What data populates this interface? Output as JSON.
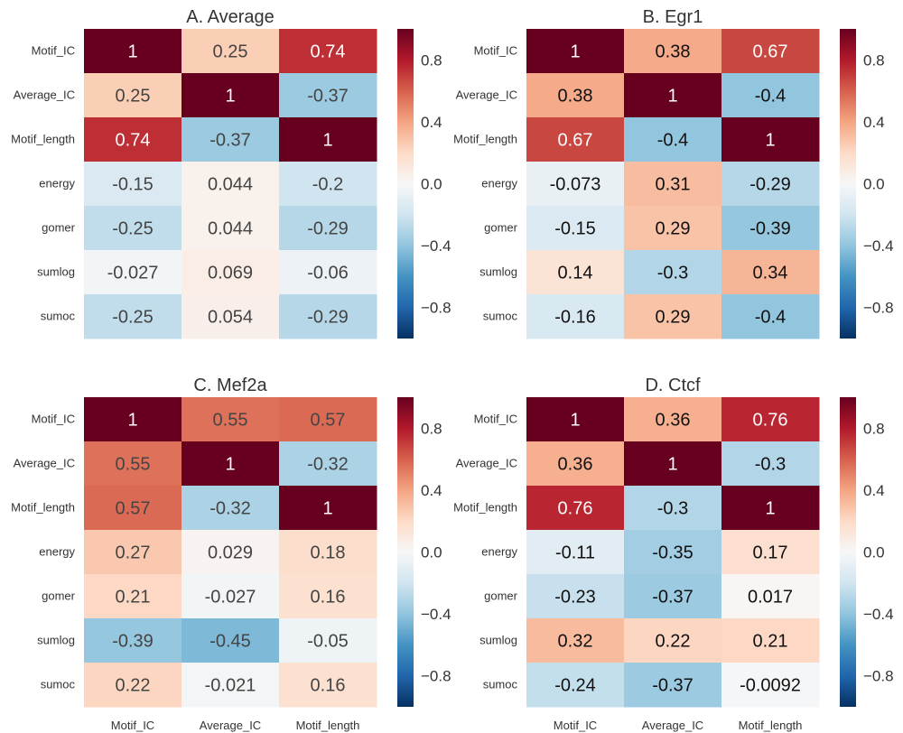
{
  "chart_data": [
    {
      "type": "heatmap",
      "title": "A.  Average",
      "rows": [
        "Motif_IC",
        "Average_IC",
        "Motif_length",
        "energy",
        "gomer",
        "sumlog",
        "sumoc"
      ],
      "cols": [
        "Motif_IC",
        "Average_IC",
        "Motif_length"
      ],
      "show_col_labels": false,
      "values": [
        [
          1,
          0.25,
          0.74
        ],
        [
          0.25,
          1,
          -0.37
        ],
        [
          0.74,
          -0.37,
          1
        ],
        [
          -0.15,
          0.044,
          -0.2
        ],
        [
          -0.25,
          0.044,
          -0.29
        ],
        [
          -0.027,
          0.069,
          -0.06
        ],
        [
          -0.25,
          0.054,
          -0.29
        ]
      ],
      "labels": [
        [
          "1",
          "0.25",
          "0.74"
        ],
        [
          "0.25",
          "1",
          "-0.37"
        ],
        [
          "0.74",
          "-0.37",
          "1"
        ],
        [
          "-0.15",
          "0.044",
          "-0.2"
        ],
        [
          "-0.25",
          "0.044",
          "-0.29"
        ],
        [
          "-0.027",
          "0.069",
          "-0.06"
        ],
        [
          "-0.25",
          "0.054",
          "-0.29"
        ]
      ],
      "colorbar": {
        "range": [
          -1,
          1
        ],
        "ticks": [
          "0.8",
          "0.4",
          "0.0",
          "−0.4",
          "−0.8"
        ],
        "tick_values": [
          0.8,
          0.4,
          0,
          -0.4,
          -0.8
        ]
      }
    },
    {
      "type": "heatmap",
      "title": "B.  Egr1",
      "rows": [
        "Motif_IC",
        "Average_IC",
        "Motif_length",
        "energy",
        "gomer",
        "sumlog",
        "sumoc"
      ],
      "cols": [
        "Motif_IC",
        "Average_IC",
        "Motif_length"
      ],
      "show_col_labels": false,
      "values": [
        [
          1,
          0.38,
          0.67
        ],
        [
          0.38,
          1,
          -0.4
        ],
        [
          0.67,
          -0.4,
          1
        ],
        [
          -0.073,
          0.31,
          -0.29
        ],
        [
          -0.15,
          0.29,
          -0.39
        ],
        [
          0.14,
          -0.3,
          0.34
        ],
        [
          -0.16,
          0.29,
          -0.4
        ]
      ],
      "labels": [
        [
          "1",
          "0.38",
          "0.67"
        ],
        [
          "0.38",
          "1",
          "-0.4"
        ],
        [
          "0.67",
          "-0.4",
          "1"
        ],
        [
          "-0.073",
          "0.31",
          "-0.29"
        ],
        [
          "-0.15",
          "0.29",
          "-0.39"
        ],
        [
          "0.14",
          "-0.3",
          "0.34"
        ],
        [
          "-0.16",
          "0.29",
          "-0.4"
        ]
      ],
      "colorbar": {
        "range": [
          -1,
          1
        ],
        "ticks": [
          "0.8",
          "0.4",
          "0.0",
          "−0.4",
          "−0.8"
        ],
        "tick_values": [
          0.8,
          0.4,
          0,
          -0.4,
          -0.8
        ]
      }
    },
    {
      "type": "heatmap",
      "title": "C.  Mef2a",
      "rows": [
        "Motif_IC",
        "Average_IC",
        "Motif_length",
        "energy",
        "gomer",
        "sumlog",
        "sumoc"
      ],
      "cols": [
        "Motif_IC",
        "Average_IC",
        "Motif_length"
      ],
      "show_col_labels": true,
      "values": [
        [
          1,
          0.55,
          0.57
        ],
        [
          0.55,
          1,
          -0.32
        ],
        [
          0.57,
          -0.32,
          1
        ],
        [
          0.27,
          0.029,
          0.18
        ],
        [
          0.21,
          -0.027,
          0.16
        ],
        [
          -0.39,
          -0.45,
          -0.05
        ],
        [
          0.22,
          -0.021,
          0.16
        ]
      ],
      "labels": [
        [
          "1",
          "0.55",
          "0.57"
        ],
        [
          "0.55",
          "1",
          "-0.32"
        ],
        [
          "0.57",
          "-0.32",
          "1"
        ],
        [
          "0.27",
          "0.029",
          "0.18"
        ],
        [
          "0.21",
          "-0.027",
          "0.16"
        ],
        [
          "-0.39",
          "-0.45",
          "-0.05"
        ],
        [
          "0.22",
          "-0.021",
          "0.16"
        ]
      ],
      "colorbar": {
        "range": [
          -1,
          1
        ],
        "ticks": [
          "0.8",
          "0.4",
          "0.0",
          "−0.4",
          "−0.8"
        ],
        "tick_values": [
          0.8,
          0.4,
          0,
          -0.4,
          -0.8
        ]
      }
    },
    {
      "type": "heatmap",
      "title": "D.  Ctcf",
      "rows": [
        "Motif_IC",
        "Average_IC",
        "Motif_length",
        "energy",
        "gomer",
        "sumlog",
        "sumoc"
      ],
      "cols": [
        "Motif_IC",
        "Average_IC",
        "Motif_length"
      ],
      "show_col_labels": true,
      "values": [
        [
          1,
          0.36,
          0.76
        ],
        [
          0.36,
          1,
          -0.3
        ],
        [
          0.76,
          -0.3,
          1
        ],
        [
          -0.11,
          -0.35,
          0.17
        ],
        [
          -0.23,
          -0.37,
          0.017
        ],
        [
          0.32,
          0.22,
          0.21
        ],
        [
          -0.24,
          -0.37,
          -0.0092
        ]
      ],
      "labels": [
        [
          "1",
          "0.36",
          "0.76"
        ],
        [
          "0.36",
          "1",
          "-0.3"
        ],
        [
          "0.76",
          "-0.3",
          "1"
        ],
        [
          "-0.11",
          "-0.35",
          "0.17"
        ],
        [
          "-0.23",
          "-0.37",
          "0.017"
        ],
        [
          "0.32",
          "0.22",
          "0.21"
        ],
        [
          "-0.24",
          "-0.37",
          "-0.0092"
        ]
      ],
      "colorbar": {
        "range": [
          -1,
          1
        ],
        "ticks": [
          "0.8",
          "0.4",
          "0.0",
          "−0.4",
          "−0.8"
        ],
        "tick_values": [
          0.8,
          0.4,
          0,
          -0.4,
          -0.8
        ]
      }
    }
  ],
  "colormap": {
    "name": "RdBu_r",
    "stops": [
      "#053061",
      "#2166ac",
      "#4393c3",
      "#92c5de",
      "#d1e5f0",
      "#f7f7f7",
      "#fddbc7",
      "#f4a582",
      "#d6604d",
      "#b2182b",
      "#67001f"
    ]
  }
}
